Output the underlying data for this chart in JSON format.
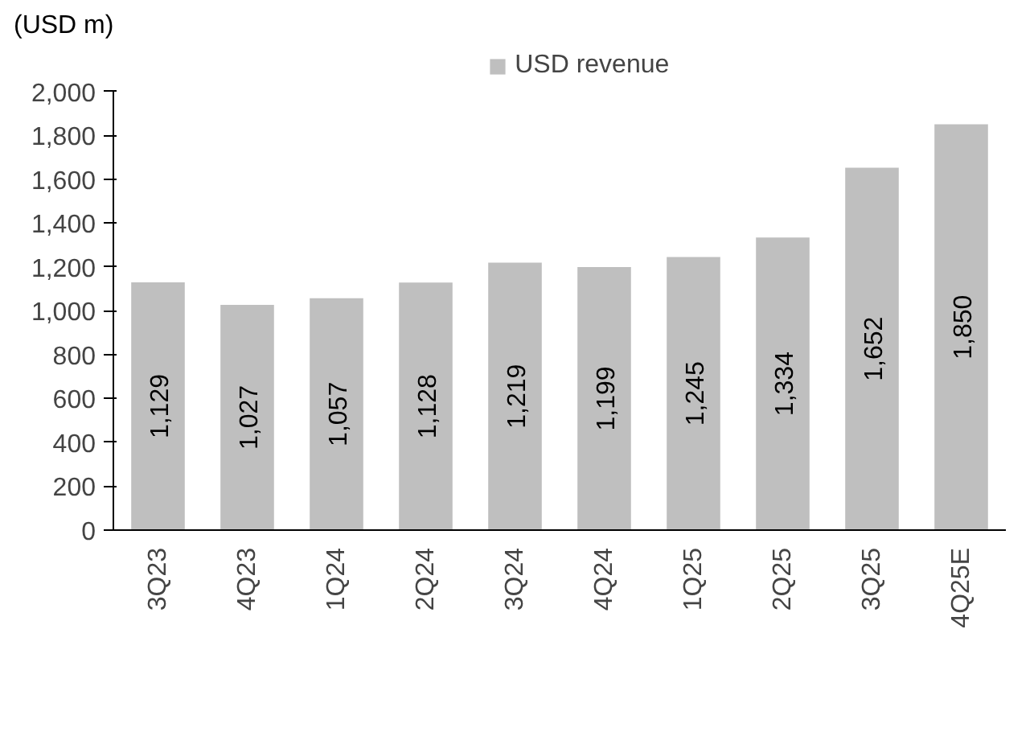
{
  "chart_data": {
    "type": "bar",
    "ylabel": "(USD m)",
    "categories": [
      "3Q23",
      "4Q23",
      "1Q24",
      "2Q24",
      "3Q24",
      "4Q24",
      "1Q25",
      "2Q25",
      "3Q25",
      "4Q25E"
    ],
    "series": [
      {
        "name": "USD revenue",
        "color": "#bfbfbf",
        "values": [
          1129,
          1027,
          1057,
          1128,
          1219,
          1199,
          1245,
          1334,
          1652,
          1850
        ],
        "value_labels": [
          "1,129",
          "1,027",
          "1,057",
          "1,128",
          "1,219",
          "1,199",
          "1,245",
          "1,334",
          "1,652",
          "1,850"
        ]
      }
    ],
    "ylim": [
      0,
      2000
    ],
    "yticks": [
      0,
      200,
      400,
      600,
      800,
      {
        "value": 1000,
        "label": "1,000"
      },
      {
        "value": 1200,
        "label": "1,200"
      },
      {
        "value": 1400,
        "label": "1,400"
      },
      {
        "value": 1600,
        "label": "1,600"
      },
      {
        "value": 1800,
        "label": "1,800"
      },
      {
        "value": 2000,
        "label": "2,000"
      }
    ],
    "grid": false,
    "legend": "top"
  }
}
